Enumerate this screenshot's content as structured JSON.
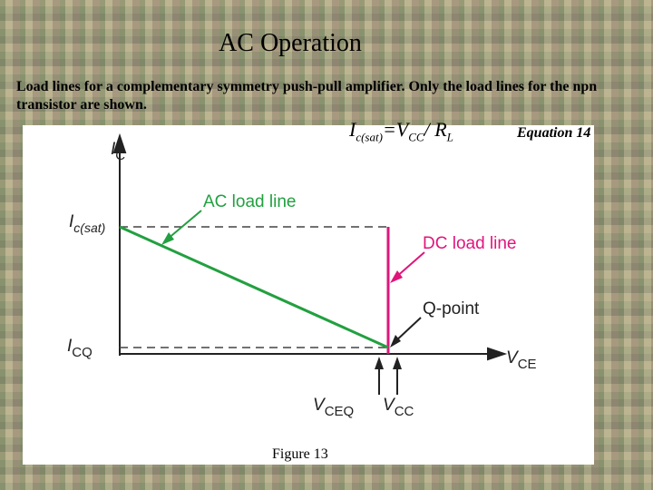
{
  "header": {
    "title": "AC Operation",
    "subtitle": "Load lines for a complementary symmetry push-pull amplifier. Only the load lines for the npn transistor are shown."
  },
  "equation": {
    "parts": [
      "I",
      "c(sat)",
      "=V",
      "CC",
      "/ R",
      "L"
    ],
    "label": "Equation 14"
  },
  "diagram": {
    "y_axis": [
      "I",
      "C"
    ],
    "x_axis": [
      "V",
      "CE"
    ],
    "ic_sat": [
      "I",
      "c(sat)"
    ],
    "icq": [
      "I",
      "CQ"
    ],
    "vceq": [
      "V",
      "CEQ"
    ],
    "vcc": [
      "V",
      "CC"
    ],
    "ac_load_line": "AC load line",
    "dc_load_line": "DC load line",
    "q_point": "Q-point"
  },
  "caption": "Figure 13"
}
